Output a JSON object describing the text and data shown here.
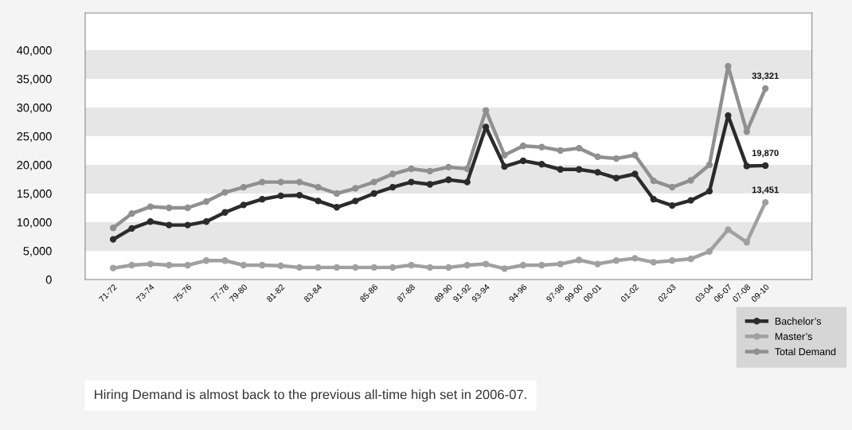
{
  "chart_data": {
    "type": "line",
    "categories": [
      "71-72",
      null,
      "73-74",
      null,
      "75-76",
      null,
      "77-78",
      "79-80",
      null,
      "81-82",
      null,
      "83-84",
      null,
      null,
      "85-86",
      null,
      "87-88",
      null,
      "89-90",
      "91-92",
      "93-94",
      null,
      "94-96",
      null,
      "97-98",
      "99-00",
      "00-01",
      null,
      "01-02",
      null,
      "02-03",
      null,
      "03-04",
      "06-07",
      "07-08",
      "09-10"
    ],
    "series": [
      {
        "name": "Bachelor’s",
        "color": "#2b2b2b",
        "values": [
          7000,
          8900,
          10100,
          9500,
          9500,
          10100,
          11700,
          13000,
          14000,
          14600,
          14700,
          13700,
          12600,
          13700,
          15000,
          16100,
          17000,
          16600,
          17400,
          17000,
          26600,
          19700,
          20700,
          20100,
          19200,
          19200,
          18700,
          17700,
          18400,
          14000,
          12900,
          13800,
          15400,
          28600,
          19800,
          19870
        ],
        "value_labels": [
          null,
          null,
          null,
          null,
          null,
          null,
          null,
          null,
          null,
          null,
          null,
          null,
          null,
          null,
          null,
          null,
          null,
          null,
          null,
          null,
          null,
          null,
          null,
          null,
          null,
          null,
          null,
          null,
          null,
          null,
          null,
          null,
          null,
          null,
          null,
          "19,870"
        ]
      },
      {
        "name": "Master’s",
        "color": "#a0a0a0",
        "values": [
          2000,
          2500,
          2700,
          2500,
          2500,
          3300,
          3300,
          2500,
          2500,
          2400,
          2100,
          2100,
          2100,
          2100,
          2100,
          2100,
          2500,
          2100,
          2100,
          2500,
          2700,
          1900,
          2500,
          2500,
          2700,
          3400,
          2700,
          3300,
          3700,
          3000,
          3300,
          3600,
          4900,
          8700,
          6500,
          13451
        ],
        "value_labels": [
          null,
          null,
          null,
          null,
          null,
          null,
          null,
          null,
          null,
          null,
          null,
          null,
          null,
          null,
          null,
          null,
          null,
          null,
          null,
          null,
          null,
          null,
          null,
          null,
          null,
          null,
          null,
          null,
          null,
          null,
          null,
          null,
          null,
          null,
          null,
          "13,451"
        ]
      },
      {
        "name": "Total Demand",
        "color": "#909090",
        "values": [
          9000,
          11500,
          12700,
          12500,
          12500,
          13600,
          15200,
          16100,
          17000,
          17000,
          17000,
          16100,
          15000,
          15900,
          17000,
          18400,
          19300,
          18900,
          19600,
          19300,
          29500,
          21700,
          23300,
          23100,
          22500,
          22900,
          21400,
          21100,
          21700,
          17200,
          16100,
          17300,
          20000,
          37200,
          25800,
          33321
        ],
        "value_labels": [
          null,
          null,
          null,
          null,
          null,
          null,
          null,
          null,
          null,
          null,
          null,
          null,
          null,
          null,
          null,
          null,
          null,
          null,
          null,
          null,
          null,
          null,
          null,
          null,
          null,
          null,
          null,
          null,
          null,
          null,
          null,
          null,
          null,
          null,
          null,
          "33,321"
        ]
      }
    ],
    "ylim": [
      0,
      46500
    ],
    "yticks": [
      0,
      {
        "value": 5000,
        "label": "5,000"
      },
      {
        "value": 10000,
        "label": "10,000"
      },
      {
        "value": 15000,
        "label": "15,000"
      },
      {
        "value": 20000,
        "label": "20,000"
      },
      {
        "value": 25000,
        "label": "25,000"
      },
      {
        "value": 30000,
        "label": "30,000"
      },
      {
        "value": 35000,
        "label": "35,000"
      },
      {
        "value": 40000,
        "label": "40,000"
      }
    ],
    "bands": [
      {
        "axis": "y",
        "from": 5000,
        "to": 10000,
        "color": "#e6e6e6"
      },
      {
        "axis": "y",
        "from": 15000,
        "to": 20000,
        "color": "#e6e6e6"
      },
      {
        "axis": "y",
        "from": 25000,
        "to": 30000,
        "color": "#e6e6e6"
      },
      {
        "axis": "y",
        "from": 35000,
        "to": 40000,
        "color": "#e6e6e6"
      }
    ],
    "grid": false,
    "marker": "circle",
    "line_style": "solid",
    "legend": "bottom right",
    "annotations": [
      "Hiring Demand is almost back to the previous all-time high set in 2006-07."
    ]
  }
}
